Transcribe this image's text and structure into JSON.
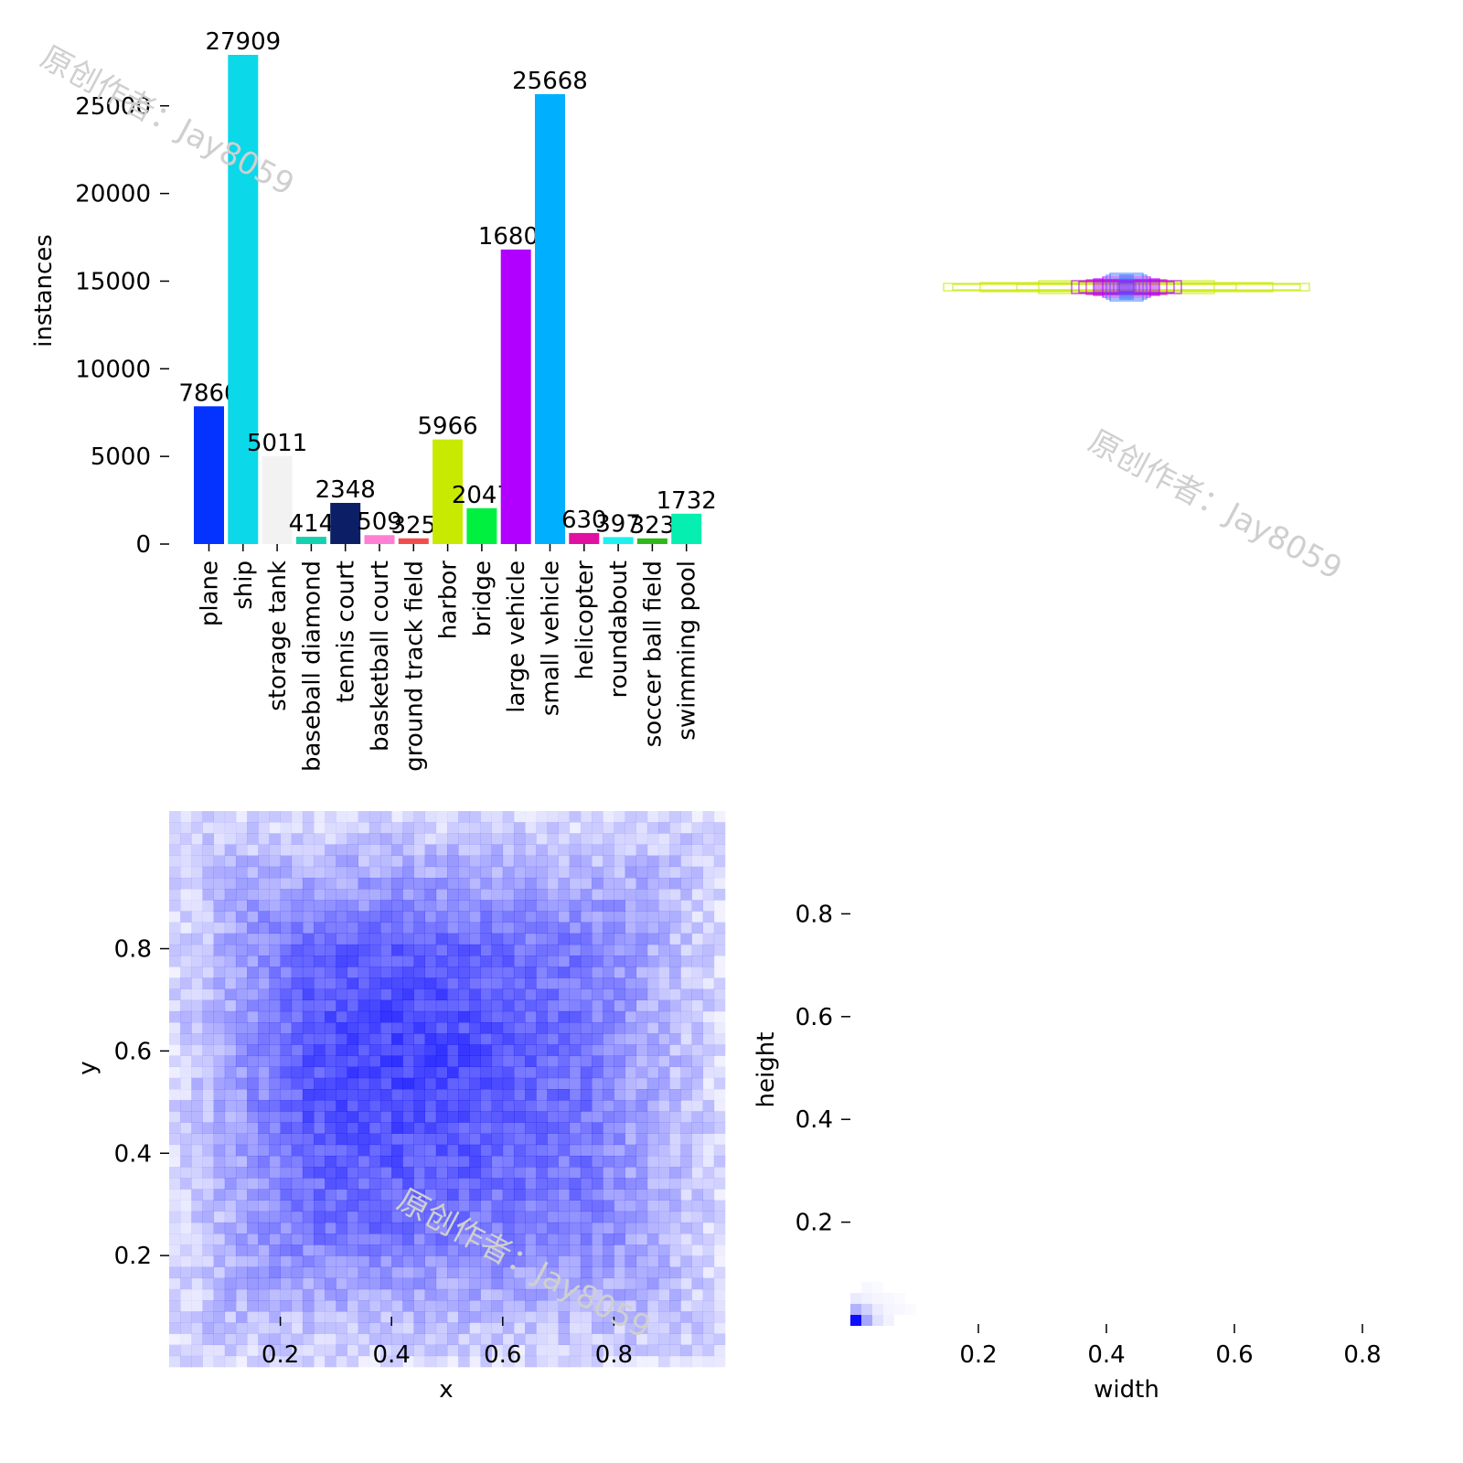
{
  "watermark": "原创作者：Jay8059",
  "chart_data": [
    {
      "type": "bar",
      "ylabel": "instances",
      "ylim": [
        0,
        28500
      ],
      "yticks": [
        "0",
        "5000",
        "10000",
        "15000",
        "20000",
        "25000"
      ],
      "categories": [
        "plane",
        "ship",
        "storage tank",
        "baseball diamond",
        "tennis court",
        "basketball court",
        "ground track field",
        "harbor",
        "bridge",
        "large vehicle",
        "small vehicle",
        "helicopter",
        "roundabout",
        "soccer ball field",
        "swimming pool"
      ],
      "values": [
        7860,
        27909,
        5011,
        414,
        2348,
        509,
        325,
        5966,
        2047,
        16804,
        25668,
        630,
        397,
        323,
        1732
      ],
      "value_labels": [
        "7860",
        "27909",
        "5011",
        "414",
        "2348",
        "509",
        "325",
        "5966",
        "2047",
        "16804",
        "25668",
        "630",
        "397",
        "323",
        "1732"
      ],
      "colors": [
        "#0433ff",
        "#0bd8e8",
        "#f2f2f2",
        "#14d1b0",
        "#0c1f66",
        "#ff7fd5",
        "#f24d4d",
        "#c8ea00",
        "#00f040",
        "#b100ff",
        "#00b0ff",
        "#e010a0",
        "#1ef0f0",
        "#2fb81a",
        "#05f0b0"
      ]
    },
    {
      "type": "box_overlay",
      "description_colors": [
        "#c8ea00",
        "#b100ff",
        "#3a7bff",
        "#e010a0"
      ]
    },
    {
      "type": "heatmap",
      "xlabel": "x",
      "ylabel": "y",
      "xticks": [
        "0.2",
        "0.4",
        "0.6",
        "0.8"
      ],
      "yticks": [
        "0.2",
        "0.4",
        "0.6",
        "0.8"
      ],
      "x_range": [
        0,
        1
      ],
      "y_range": [
        0,
        1
      ],
      "color": "#0000ff"
    },
    {
      "type": "heatmap",
      "xlabel": "width",
      "ylabel": "height",
      "xticks": [
        "0.2",
        "0.4",
        "0.6",
        "0.8"
      ],
      "yticks": [
        "0.2",
        "0.4",
        "0.6",
        "0.8"
      ],
      "x_range": [
        0,
        0.8
      ],
      "y_range": [
        0,
        0.9
      ],
      "color": "#0000ff"
    }
  ]
}
